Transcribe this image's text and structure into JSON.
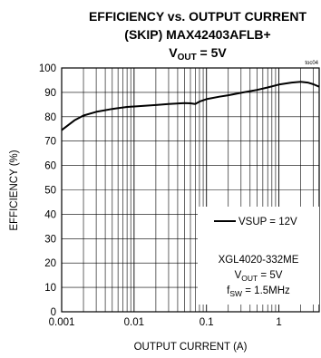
{
  "chart_data": {
    "type": "line",
    "title_line1": "EFFICIENCY vs. OUTPUT CURRENT",
    "title_line2": "(SKIP) MAX42403AFLB+",
    "title_line3_prefix": "V",
    "title_line3_sub": "OUT",
    "title_line3_suffix": " = 5V",
    "figure_code": "toc04",
    "xlabel": "OUTPUT CURRENT (A)",
    "ylabel": "EFFICIENCY (%)",
    "x_scale": "log",
    "xlim": [
      0.001,
      3.6
    ],
    "ylim": [
      0,
      100
    ],
    "x_ticks": [
      {
        "value": 0.001,
        "label": "0.001"
      },
      {
        "value": 0.01,
        "label": "0.01"
      },
      {
        "value": 0.1,
        "label": "0.1"
      },
      {
        "value": 1,
        "label": "1"
      }
    ],
    "y_ticks": [
      0,
      10,
      20,
      30,
      40,
      50,
      60,
      70,
      80,
      90,
      100
    ],
    "grid": true,
    "legend_position": "bottom-right",
    "legend_entry": "VSUP = 12V",
    "annotation": {
      "line1": "XGL4020-332ME",
      "line2_prefix": "V",
      "line2_sub": "OUT",
      "line2_suffix": " = 5V",
      "line3_prefix": "f",
      "line3_sub": "SW",
      "line3_suffix": " = 1.5MHz"
    },
    "series": [
      {
        "name": "VSUP = 12V",
        "color": "#000000",
        "x": [
          0.001,
          0.0015,
          0.002,
          0.003,
          0.005,
          0.008,
          0.01,
          0.02,
          0.03,
          0.05,
          0.06,
          0.07,
          0.08,
          0.1,
          0.15,
          0.2,
          0.3,
          0.5,
          0.7,
          1.0,
          1.5,
          2.0,
          2.5,
          3.0,
          3.6
        ],
        "y": [
          74.5,
          78.5,
          80.5,
          82,
          83.2,
          84,
          84.2,
          84.8,
          85.2,
          85.6,
          85.5,
          85.2,
          86.2,
          87.2,
          88.2,
          88.8,
          89.8,
          91,
          92,
          93.2,
          94,
          94.3,
          94,
          93.3,
          92.3
        ]
      }
    ]
  }
}
